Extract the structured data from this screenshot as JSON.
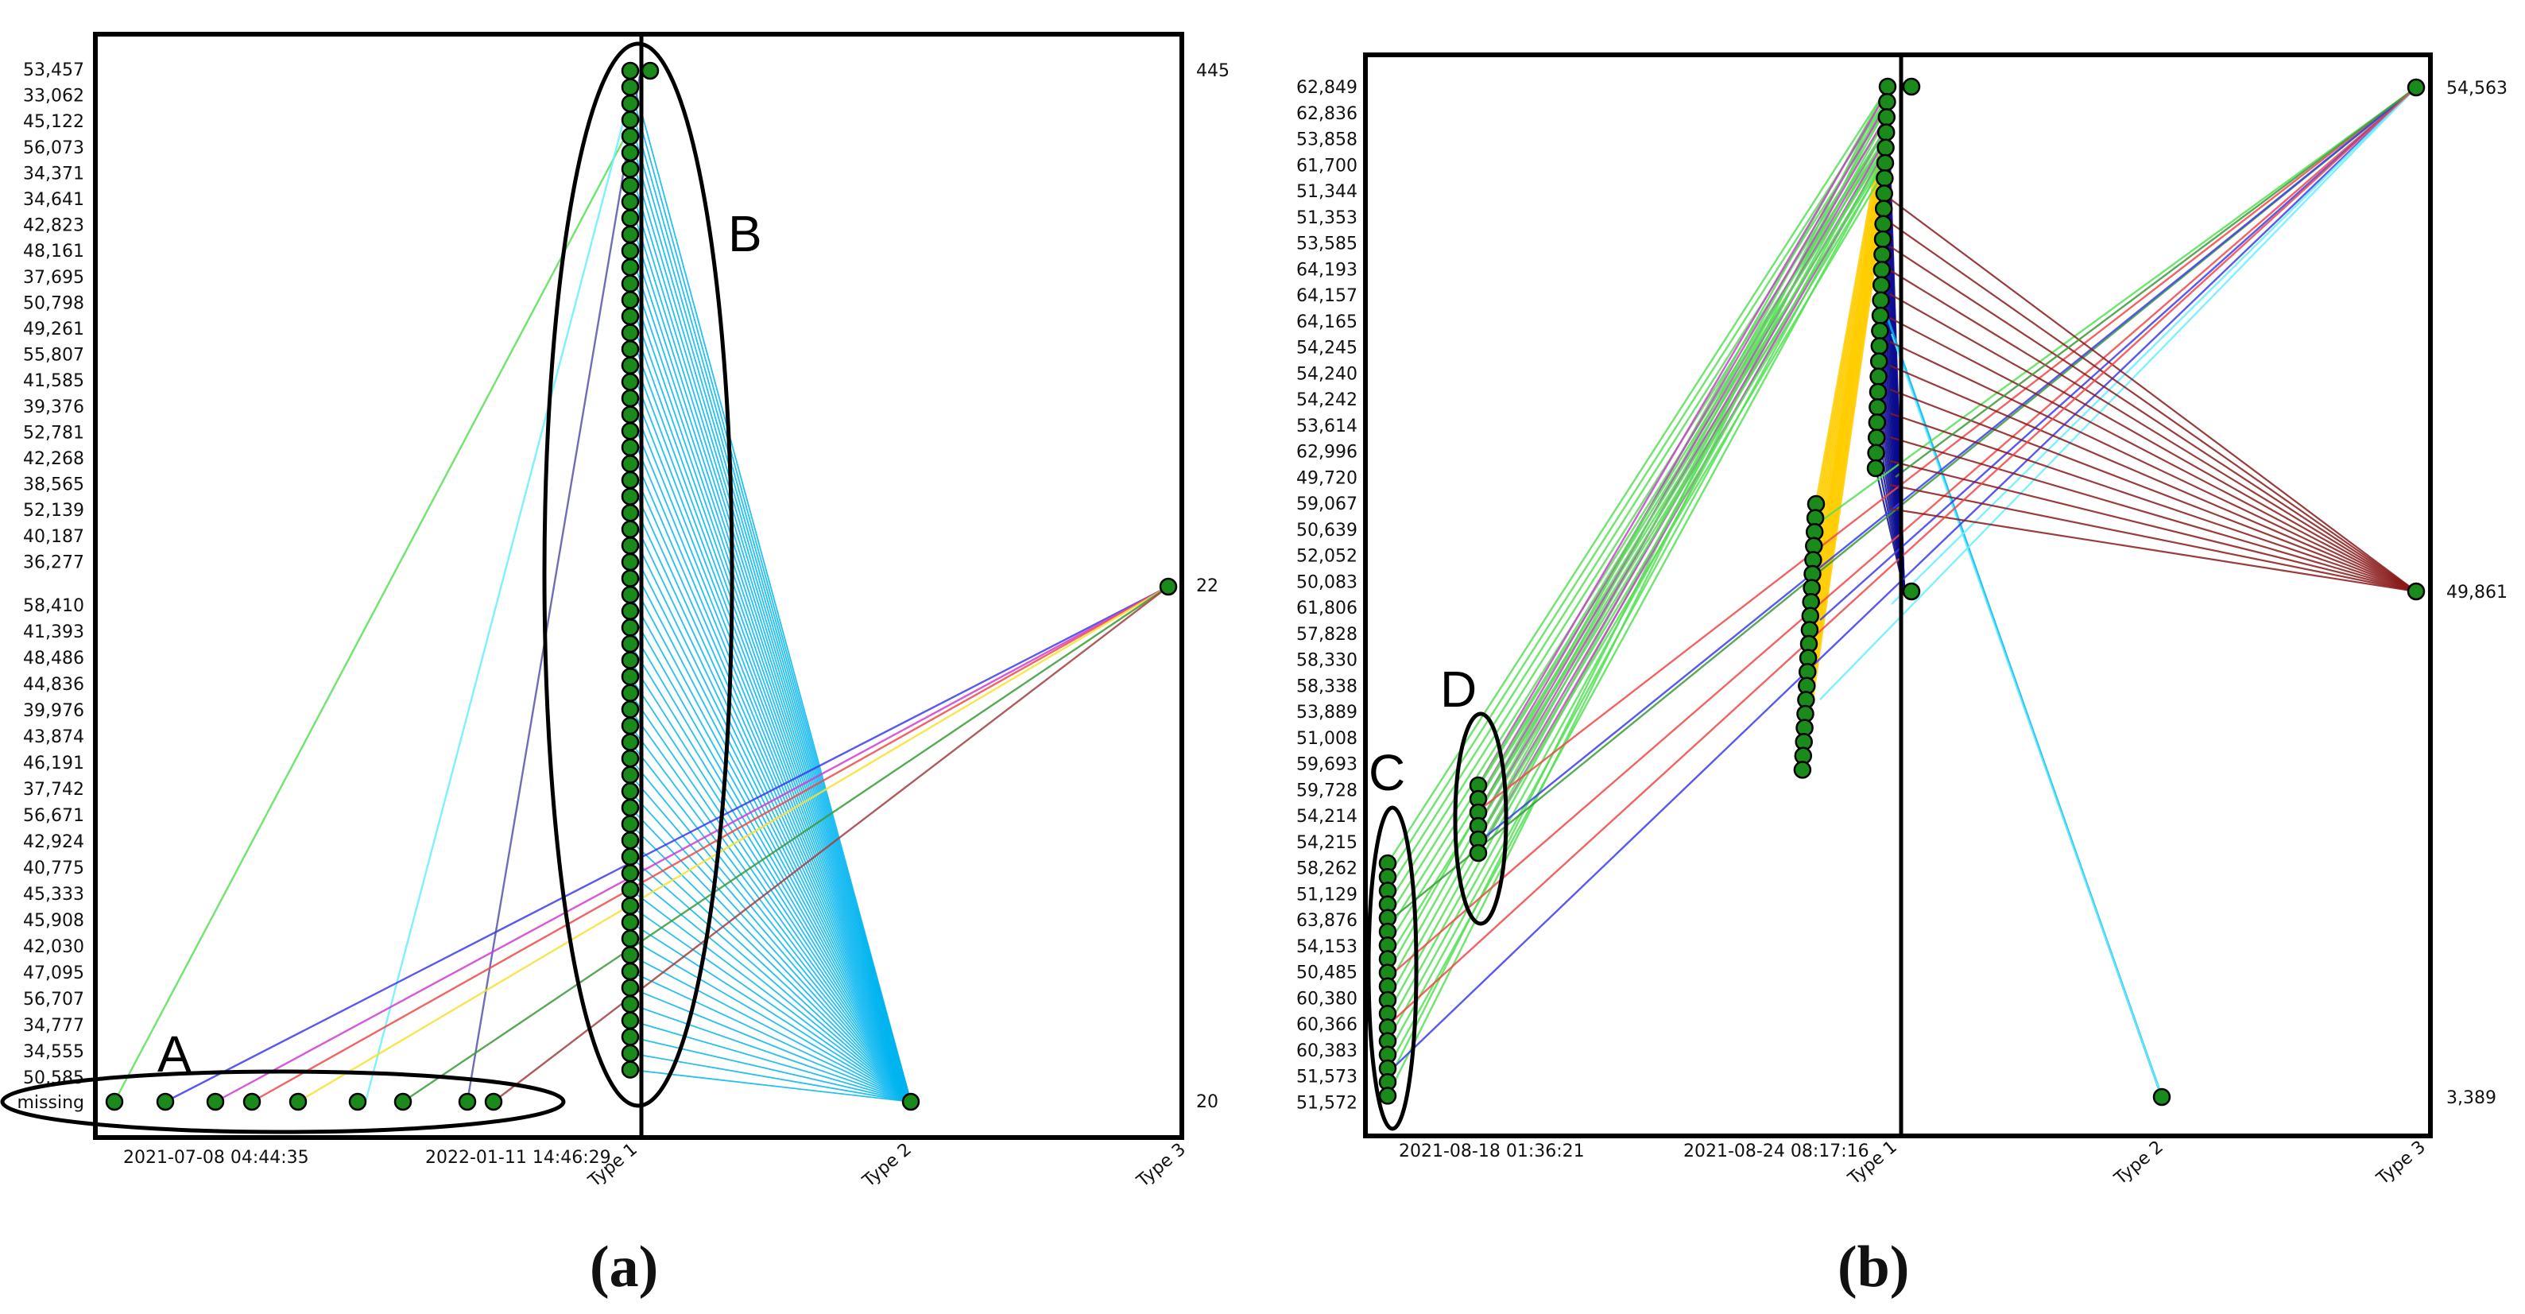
{
  "chart_data": [
    {
      "type": "parallel-coordinates",
      "panel_label": "(a)",
      "left_axis_labels": [
        "53,457",
        "33,062",
        "45,122",
        "56,073",
        "34,371",
        "34,641",
        "42,823",
        "48,161",
        "37,695",
        "50,798",
        "49,261",
        "55,807",
        "41,585",
        "39,376",
        "52,781",
        "42,268",
        "38,565",
        "52,139",
        "40,187",
        "36,277",
        "58,410",
        "41,393",
        "48,486",
        "44,836",
        "39,976",
        "43,874",
        "46,191",
        "37,742",
        "56,671",
        "42,924",
        "40,775",
        "45,333",
        "45,908",
        "42,030",
        "47,095",
        "56,707",
        "34,777",
        "34,555",
        "50,585",
        "missing"
      ],
      "right_axis_labels": [
        "445",
        "22",
        "20"
      ],
      "x_labels": [
        "2021-07-08 04:44:35",
        "2022-01-11 14:46:29"
      ],
      "category_labels": [
        "Type 1",
        "Type 2",
        "Type 3"
      ],
      "annotations": [
        "A",
        "B"
      ],
      "colors": {
        "node": "#1a8a1a",
        "cyan": "#00b4f0",
        "light_cyan": "#66eeff",
        "green": "#55e055",
        "red": "#f04848",
        "blue": "#3b3bf0",
        "magenta": "#d03cd0",
        "yellow": "#f8e030",
        "dark_green": "#3a9a3a",
        "brown": "#a04040",
        "slate": "#5555aa",
        "gold": "#ffcc00",
        "navy": "#0a0a90",
        "maroon": "#8a1a1a"
      }
    },
    {
      "type": "parallel-coordinates",
      "panel_label": "(b)",
      "left_axis_labels": [
        "62,849",
        "62,836",
        "53,858",
        "61,700",
        "51,344",
        "51,353",
        "53,585",
        "64,193",
        "64,157",
        "64,165",
        "54,245",
        "54,240",
        "54,242",
        "53,614",
        "62,996",
        "49,720",
        "59,067",
        "50,639",
        "52,052",
        "50,083",
        "61,806",
        "57,828",
        "58,330",
        "58,338",
        "53,889",
        "51,008",
        "59,693",
        "59,728",
        "54,214",
        "54,215",
        "58,262",
        "51,129",
        "63,876",
        "54,153",
        "50,485",
        "60,380",
        "60,366",
        "60,383",
        "51,573",
        "51,572"
      ],
      "right_axis_labels": [
        "54,563",
        "49,861",
        "3,389"
      ],
      "x_labels": [
        "2021-08-18 01:36:21",
        "2021-08-24 08:17:16"
      ],
      "category_labels": [
        "Type 1",
        "Type 2",
        "Type 3"
      ],
      "annotations": [
        "C",
        "D"
      ]
    }
  ]
}
